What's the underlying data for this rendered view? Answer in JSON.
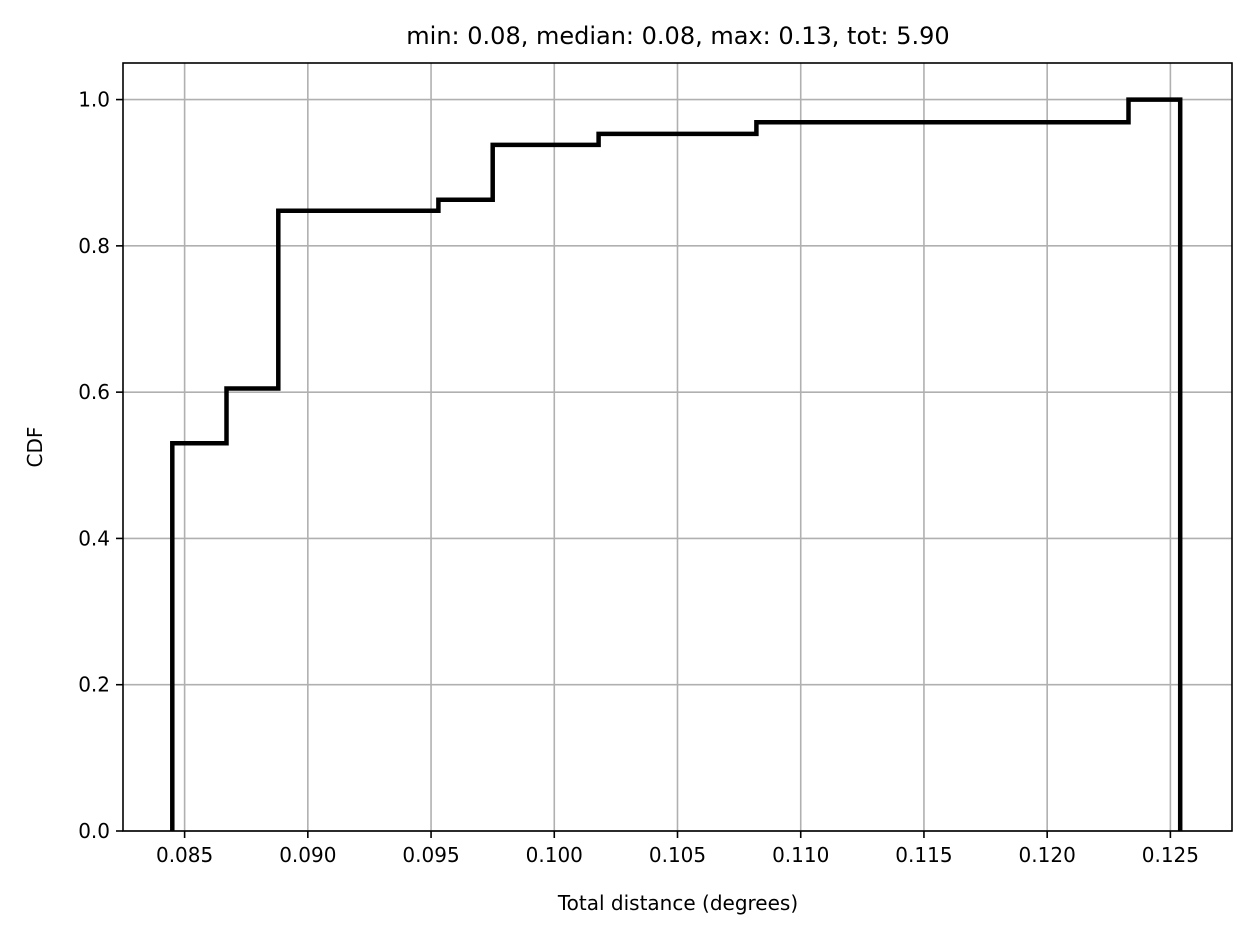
{
  "chart_data": {
    "type": "line",
    "subtype": "step-cdf",
    "title": "min: 0.08, median: 0.08, max: 0.13, tot: 5.90",
    "xlabel": "Total distance (degrees)",
    "ylabel": "CDF",
    "xlim": [
      0.0825,
      0.1275
    ],
    "ylim": [
      0.0,
      1.05
    ],
    "x_ticks": [
      0.085,
      0.09,
      0.095,
      0.1,
      0.105,
      0.11,
      0.115,
      0.12,
      0.125
    ],
    "x_tick_labels": [
      "0.085",
      "0.090",
      "0.095",
      "0.100",
      "0.105",
      "0.110",
      "0.115",
      "0.120",
      "0.125"
    ],
    "y_ticks": [
      0.0,
      0.2,
      0.4,
      0.6,
      0.8,
      1.0
    ],
    "y_tick_labels": [
      "0.0",
      "0.2",
      "0.4",
      "0.6",
      "0.8",
      "1.0"
    ],
    "grid": true,
    "legend": "none",
    "series": [
      {
        "color": "#000000",
        "x": [
          0.0845,
          0.0845,
          0.0867,
          0.0867,
          0.0888,
          0.0888,
          0.0953,
          0.0953,
          0.0975,
          0.0975,
          0.1018,
          0.1018,
          0.1082,
          0.1082,
          0.1233,
          0.1233,
          0.1254,
          0.1254
        ],
        "y": [
          0.0,
          0.53,
          0.53,
          0.605,
          0.605,
          0.848,
          0.848,
          0.863,
          0.863,
          0.938,
          0.938,
          0.953,
          0.953,
          0.969,
          0.969,
          1.0,
          1.0,
          0.0
        ]
      }
    ]
  }
}
